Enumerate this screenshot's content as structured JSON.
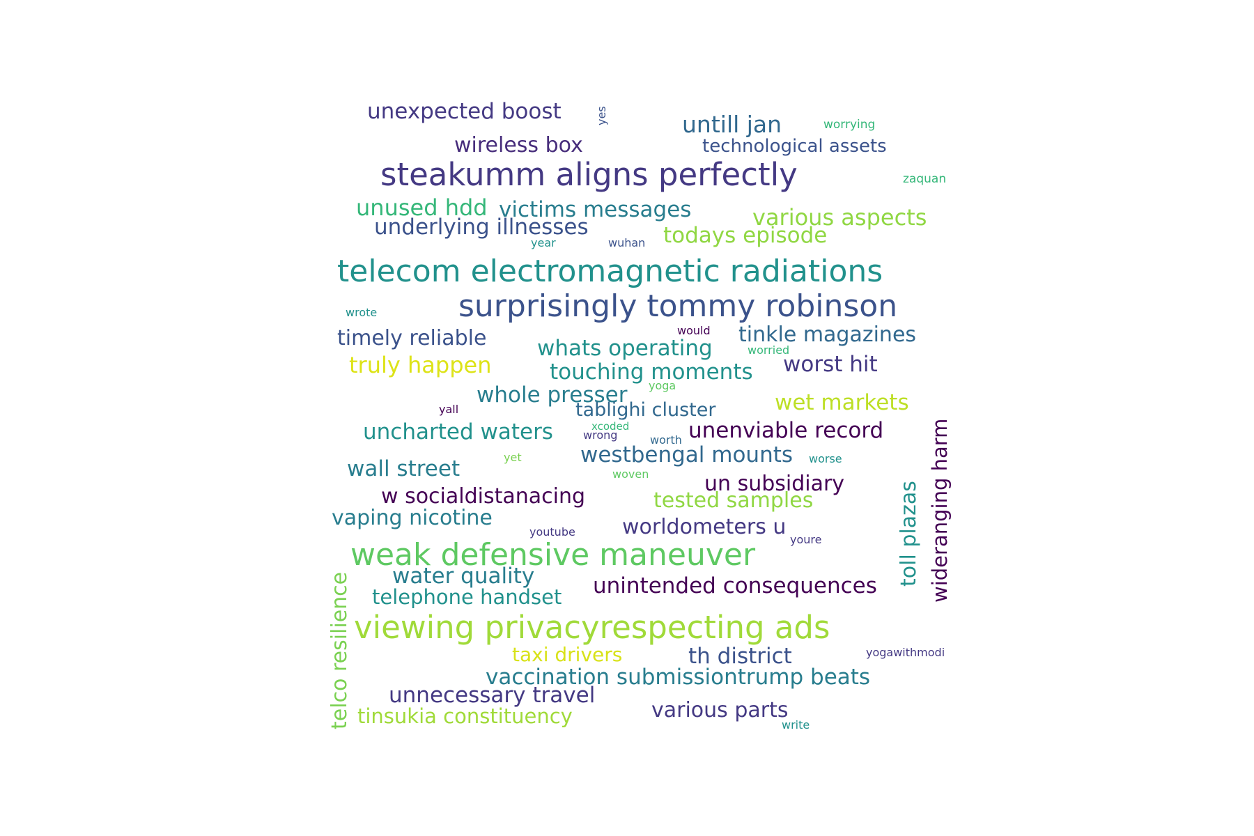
{
  "word_cloud": {
    "words": [
      {
        "id": "w01",
        "text": "unexpected boost",
        "color": "#443983"
      },
      {
        "id": "w02",
        "text": "yes",
        "color": "#3b528b"
      },
      {
        "id": "w03",
        "text": "untill jan",
        "color": "#31688e"
      },
      {
        "id": "w04",
        "text": "worrying",
        "color": "#35b779"
      },
      {
        "id": "w05",
        "text": "wireless box",
        "color": "#472d7b"
      },
      {
        "id": "w06",
        "text": "technological assets",
        "color": "#3b528b"
      },
      {
        "id": "w07",
        "text": "steakumm aligns perfectly",
        "color": "#443983"
      },
      {
        "id": "w08",
        "text": "zaquan",
        "color": "#35b779"
      },
      {
        "id": "w09",
        "text": "unused hdd",
        "color": "#35b779"
      },
      {
        "id": "w10",
        "text": "victims messages",
        "color": "#287d8e"
      },
      {
        "id": "w11",
        "text": "various aspects",
        "color": "#90d743"
      },
      {
        "id": "w12",
        "text": "underlying illnesses",
        "color": "#3b528b"
      },
      {
        "id": "w13",
        "text": "todays episode",
        "color": "#90d743"
      },
      {
        "id": "w14",
        "text": "year",
        "color": "#21918c"
      },
      {
        "id": "w15",
        "text": "wuhan",
        "color": "#3b528b"
      },
      {
        "id": "w16",
        "text": "telecom electromagnetic radiations",
        "color": "#21918c"
      },
      {
        "id": "w17",
        "text": "surprisingly tommy robinson",
        "color": "#3b528b"
      },
      {
        "id": "w18",
        "text": "wrote",
        "color": "#21918c"
      },
      {
        "id": "w19",
        "text": "would",
        "color": "#440154"
      },
      {
        "id": "w20",
        "text": "timely reliable",
        "color": "#3b528b"
      },
      {
        "id": "w21",
        "text": "tinkle magazines",
        "color": "#31688e"
      },
      {
        "id": "w22",
        "text": "whats operating",
        "color": "#21918c"
      },
      {
        "id": "w23",
        "text": "worried",
        "color": "#35b779"
      },
      {
        "id": "w24",
        "text": "truly happen",
        "color": "#dde318"
      },
      {
        "id": "w25",
        "text": "touching moments",
        "color": "#21918c"
      },
      {
        "id": "w26",
        "text": "worst hit",
        "color": "#443983"
      },
      {
        "id": "w27",
        "text": "yoga",
        "color": "#5ec962"
      },
      {
        "id": "w28",
        "text": "whole presser",
        "color": "#287d8e"
      },
      {
        "id": "w29",
        "text": "wet markets",
        "color": "#bddf26"
      },
      {
        "id": "w30",
        "text": "yall",
        "color": "#440154"
      },
      {
        "id": "w31",
        "text": "tablighi cluster",
        "color": "#31688e"
      },
      {
        "id": "w32",
        "text": "xcoded",
        "color": "#35b779"
      },
      {
        "id": "w33",
        "text": "uncharted waters",
        "color": "#21918c"
      },
      {
        "id": "w34",
        "text": "wrong",
        "color": "#443983"
      },
      {
        "id": "w35",
        "text": "worth",
        "color": "#31688e"
      },
      {
        "id": "w36",
        "text": "unenviable record",
        "color": "#440154"
      },
      {
        "id": "w37",
        "text": "wideranging harm",
        "color": "#440154",
        "vertical": true
      },
      {
        "id": "w38",
        "text": "westbengal mounts",
        "color": "#31688e"
      },
      {
        "id": "w39",
        "text": "toll plazas",
        "color": "#21918c",
        "vertical": true
      },
      {
        "id": "w40",
        "text": "wall street",
        "color": "#287d8e"
      },
      {
        "id": "w41",
        "text": "yet",
        "color": "#7ad151"
      },
      {
        "id": "w42",
        "text": "worse",
        "color": "#21918c"
      },
      {
        "id": "w43",
        "text": "woven",
        "color": "#5ec962"
      },
      {
        "id": "w44",
        "text": "un subsidiary",
        "color": "#440154"
      },
      {
        "id": "w45",
        "text": "w socialdistanacing",
        "color": "#440154"
      },
      {
        "id": "w46",
        "text": "tested samples",
        "color": "#90d743"
      },
      {
        "id": "w47",
        "text": "vaping nicotine",
        "color": "#287d8e"
      },
      {
        "id": "w48",
        "text": "youtube",
        "color": "#443983"
      },
      {
        "id": "w49",
        "text": "worldometers u",
        "color": "#443983"
      },
      {
        "id": "w50",
        "text": "youre",
        "color": "#443983"
      },
      {
        "id": "w51",
        "text": "weak defensive maneuver",
        "color": "#5ec962"
      },
      {
        "id": "w52",
        "text": "telco resilience",
        "color": "#7ad151",
        "vertical": true
      },
      {
        "id": "w53",
        "text": "water quality",
        "color": "#287d8e"
      },
      {
        "id": "w54",
        "text": "unintended consequences",
        "color": "#440154"
      },
      {
        "id": "w55",
        "text": "telephone handset",
        "color": "#21918c"
      },
      {
        "id": "w56",
        "text": "viewing privacyrespecting ads",
        "color": "#a0da39"
      },
      {
        "id": "w57",
        "text": "taxi drivers",
        "color": "#d8e219"
      },
      {
        "id": "w58",
        "text": "th district",
        "color": "#3b528b"
      },
      {
        "id": "w59",
        "text": "yogawithmodi",
        "color": "#443983"
      },
      {
        "id": "w60",
        "text": "vaccination submissiontrump beats",
        "color": "#287d8e"
      },
      {
        "id": "w61",
        "text": "unnecessary travel",
        "color": "#443983"
      },
      {
        "id": "w62",
        "text": "tinsukia constituency",
        "color": "#a0da39"
      },
      {
        "id": "w63",
        "text": "various parts",
        "color": "#443983"
      },
      {
        "id": "w64",
        "text": "write",
        "color": "#21918c"
      }
    ]
  }
}
